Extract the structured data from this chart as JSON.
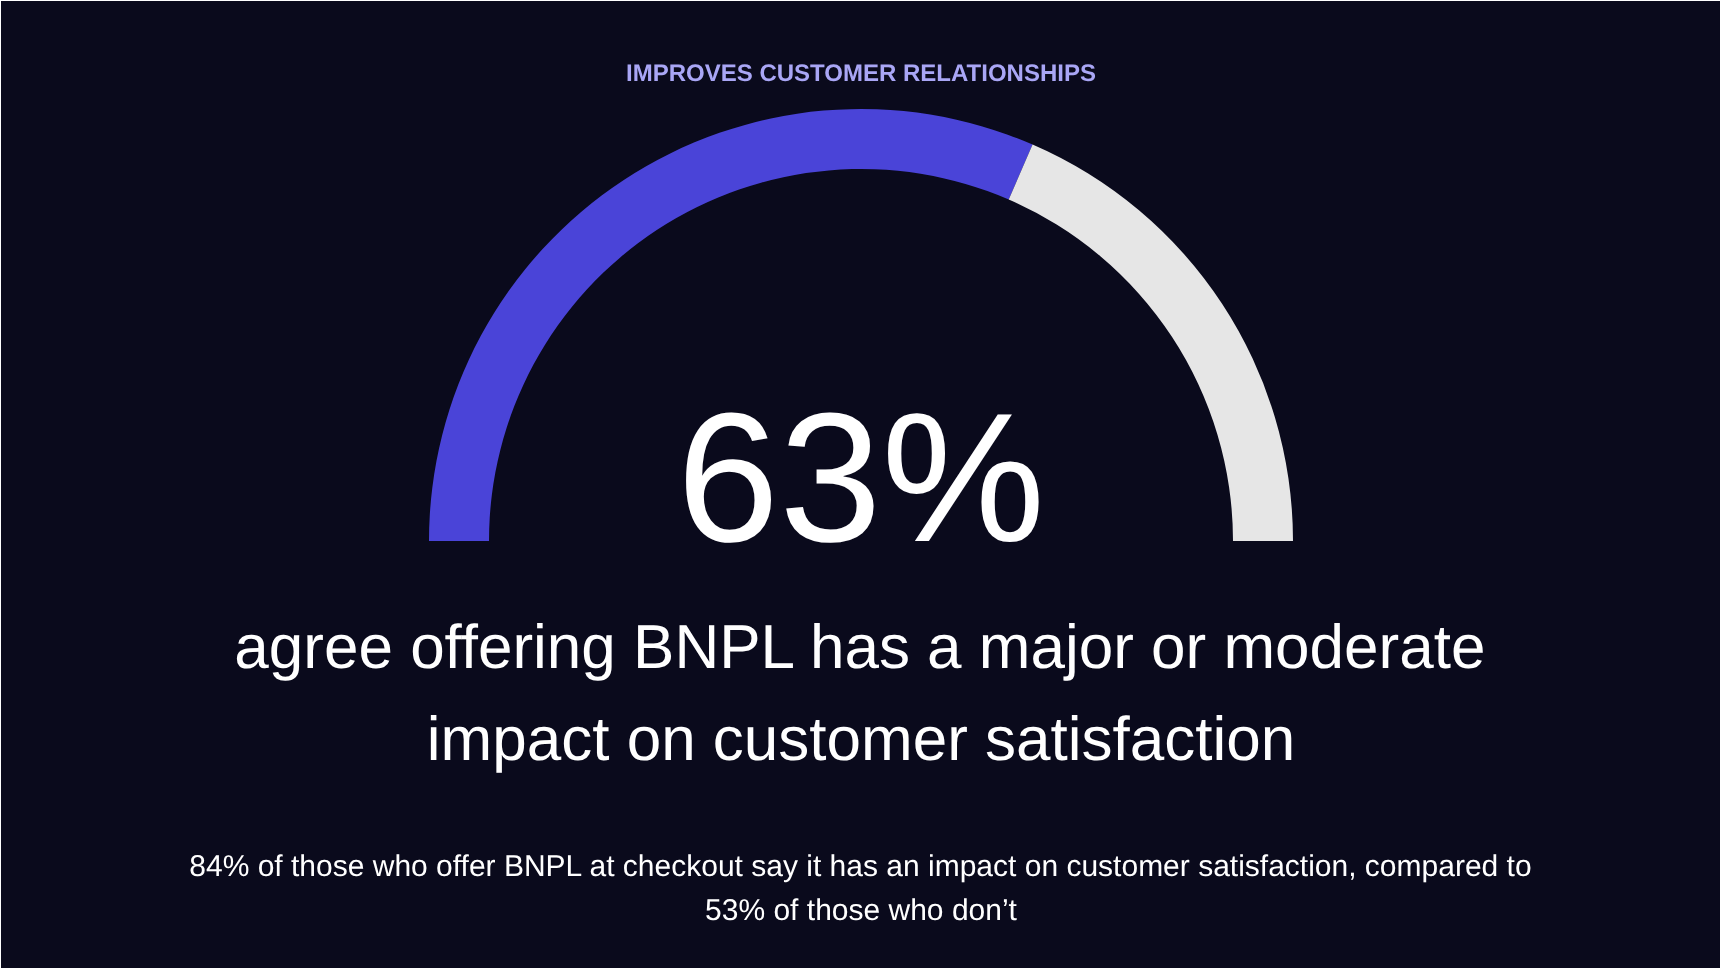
{
  "chart_data": {
    "type": "donut",
    "title": "IMPROVES CUSTOMER RELATIONSHIPS",
    "subtitle": "agree offering BNPL has a major or moderate impact on customer satisfaction",
    "categories": [
      null,
      null
    ],
    "values": [
      63,
      37
    ],
    "colors": [
      "#4a44d8",
      "#e6e6e6"
    ],
    "value_labels": [
      "63%",
      null
    ],
    "annotations": [
      "84% of those who offer BNPL at checkout say it has an impact on customer satisfaction, compared to 53% of those who don’t"
    ]
  }
}
